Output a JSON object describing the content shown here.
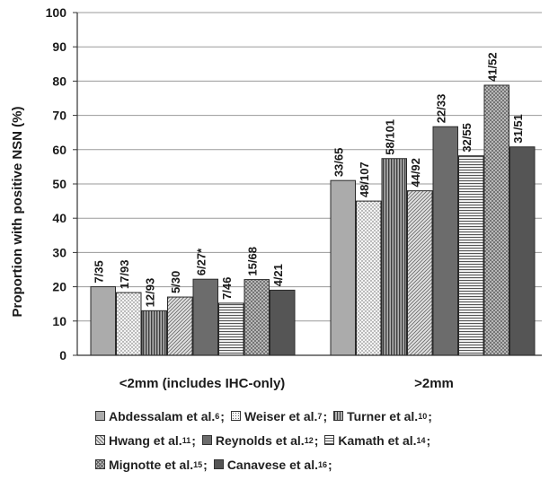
{
  "chart_data": {
    "type": "bar",
    "ylabel": "Proportion with positive NSN (%)",
    "ylim": [
      0,
      100
    ],
    "yticks": [
      0,
      10,
      20,
      30,
      40,
      50,
      60,
      70,
      80,
      90,
      100
    ],
    "grid": true,
    "categories": [
      "<2mm (includes IHC-only)",
      ">2mm"
    ],
    "series": [
      {
        "name": "Abdessalam et al.",
        "ref": "6",
        "color": "#a9a9a9",
        "pattern": "solid-light",
        "values": [
          20,
          51
        ],
        "labels": [
          "7/35",
          "33/65"
        ]
      },
      {
        "name": "Weiser et al.",
        "ref": "7",
        "color": "#f2f2f2",
        "pattern": "dots",
        "values": [
          18.3,
          45
        ],
        "labels": [
          "17/93",
          "48/107"
        ]
      },
      {
        "name": "Turner et al.",
        "ref": "10",
        "color": "#8c8c8c",
        "pattern": "vertical-lines",
        "values": [
          13,
          57.4
        ],
        "labels": [
          "12/93",
          "58/101"
        ]
      },
      {
        "name": "Hwang et al.",
        "ref": "11",
        "color": "#dcdcdc",
        "pattern": "diagonal-lines",
        "values": [
          17,
          48
        ],
        "labels": [
          "5/30",
          "44/92"
        ]
      },
      {
        "name": "Reynolds et al.",
        "ref": "12",
        "color": "#6e6e6e",
        "pattern": "solid-dark",
        "values": [
          22.2,
          66.7
        ],
        "labels": [
          "6/27*",
          "22/33"
        ]
      },
      {
        "name": "Kamath et al.",
        "ref": "14",
        "color": "#f4f4f4",
        "pattern": "horizontal-lines",
        "values": [
          15.2,
          58.2
        ],
        "labels": [
          "7/46",
          "32/55"
        ]
      },
      {
        "name": "Mignotte et al.",
        "ref": "15",
        "color": "#b8b8b8",
        "pattern": "cross-hatch",
        "values": [
          22.1,
          78.8
        ],
        "labels": [
          "15/68",
          "41/52"
        ]
      },
      {
        "name": "Canavese et al.",
        "ref": "16",
        "color": "#595959",
        "pattern": "solid-darker",
        "values": [
          19,
          60.8
        ],
        "labels": [
          "4/21",
          "31/51"
        ]
      }
    ],
    "legend": {
      "placement": "bottom",
      "rows": [
        [
          0,
          1,
          2
        ],
        [
          3,
          4,
          5
        ],
        [
          6,
          7
        ]
      ]
    }
  }
}
